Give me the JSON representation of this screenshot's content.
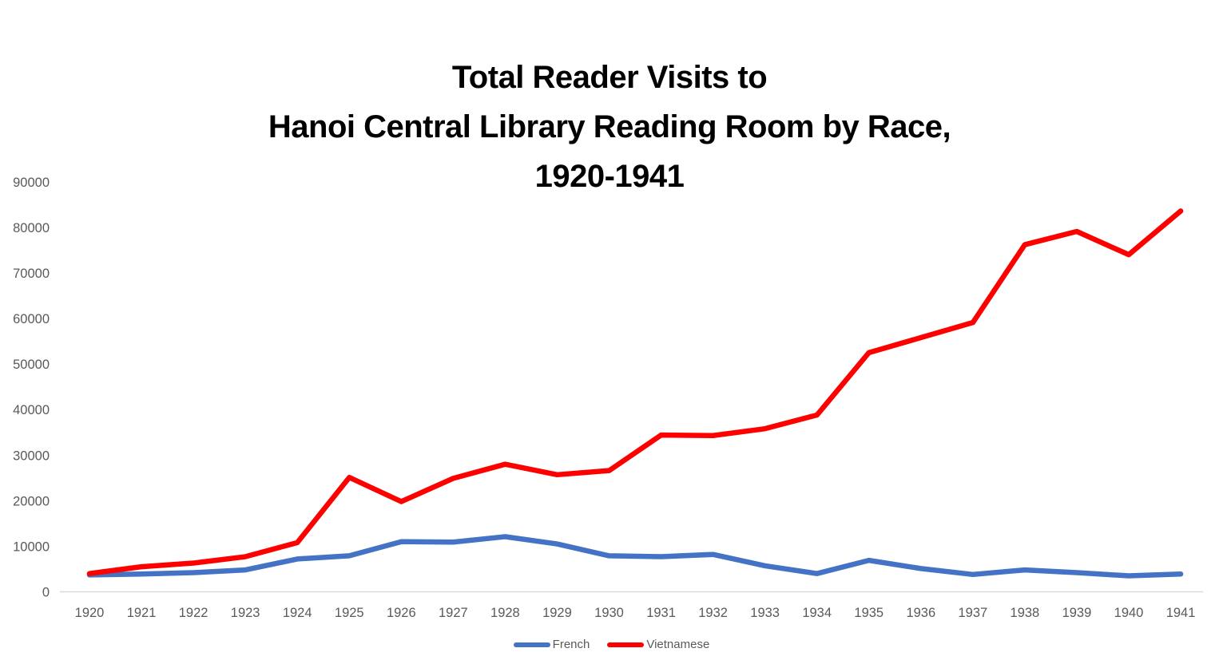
{
  "chart_data": {
    "type": "line",
    "title": "Total Reader Visits to Hanoi Central Library Reading Room by Race, 1920-1941",
    "title_lines": [
      "Total Reader Visits to",
      "Hanoi Central Library Reading Room by Race,",
      "1920-1941"
    ],
    "xlabel": "",
    "ylabel": "",
    "x": [
      1920,
      1921,
      1922,
      1923,
      1924,
      1925,
      1926,
      1927,
      1928,
      1929,
      1930,
      1931,
      1932,
      1933,
      1934,
      1935,
      1936,
      1937,
      1938,
      1939,
      1940,
      1941
    ],
    "series": [
      {
        "name": "French",
        "color": "#4472C4",
        "values": [
          3700,
          3900,
          4200,
          4800,
          7200,
          7900,
          11000,
          10900,
          12100,
          10500,
          7900,
          7700,
          8200,
          5700,
          4000,
          6900,
          5100,
          3800,
          4800,
          4200,
          3500,
          3900
        ]
      },
      {
        "name": "Vietnamese",
        "color": "#FF0000",
        "values": [
          4000,
          5500,
          6300,
          7700,
          10800,
          25100,
          19800,
          24900,
          28000,
          25700,
          26600,
          34400,
          34300,
          35800,
          38800,
          52500,
          55800,
          59100,
          76200,
          79100,
          74000,
          83600
        ]
      }
    ],
    "ylim": [
      0,
      90000
    ],
    "ytick_step": 10000,
    "ytick_labels": [
      "0",
      "10000",
      "20000",
      "30000",
      "40000",
      "50000",
      "60000",
      "70000",
      "80000",
      "90000"
    ],
    "grid": false,
    "legend_position": "bottom",
    "axis_label_color": "#595959",
    "axis_line_color": "#D9D9D9",
    "background_color": "#FFFFFF"
  }
}
